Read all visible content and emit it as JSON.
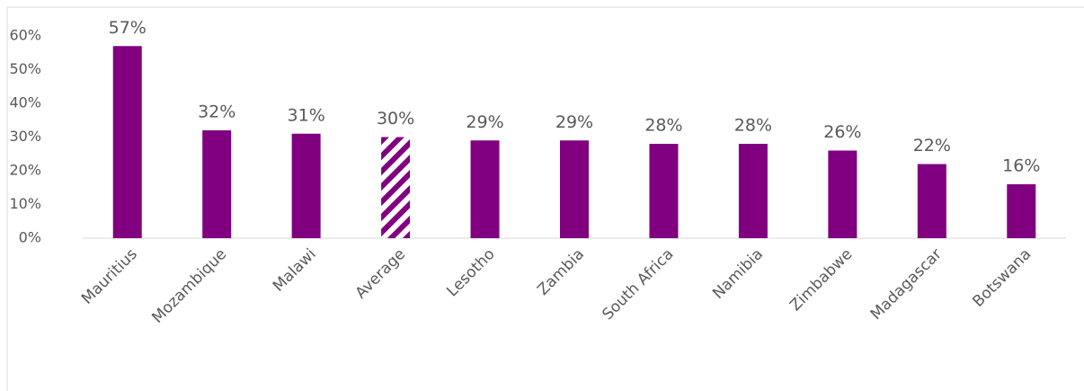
{
  "chart_data": {
    "type": "bar",
    "categories": [
      "Mauritius",
      "Mozambique",
      "Malawi",
      "Average",
      "Lesotho",
      "Zambia",
      "South Africa",
      "Namibia",
      "Zimbabwe",
      "Madagascar",
      "Botswana"
    ],
    "values": [
      57,
      32,
      31,
      30,
      29,
      29,
      28,
      28,
      26,
      22,
      16
    ],
    "value_labels": [
      "57%",
      "32%",
      "31%",
      "30%",
      "29%",
      "29%",
      "28%",
      "28%",
      "26%",
      "22%",
      "16%"
    ],
    "hatched": [
      false,
      false,
      false,
      true,
      false,
      false,
      false,
      false,
      false,
      false,
      false
    ],
    "color": "#800080",
    "ylim": [
      0,
      60
    ],
    "yticks": [
      {
        "value": 0,
        "label": "0%"
      },
      {
        "value": 10,
        "label": "10%"
      },
      {
        "value": 20,
        "label": "20%"
      },
      {
        "value": 30,
        "label": "30%"
      },
      {
        "value": 40,
        "label": "40%"
      },
      {
        "value": 50,
        "label": "50%"
      },
      {
        "value": 60,
        "label": "60%"
      }
    ],
    "grid": false
  }
}
